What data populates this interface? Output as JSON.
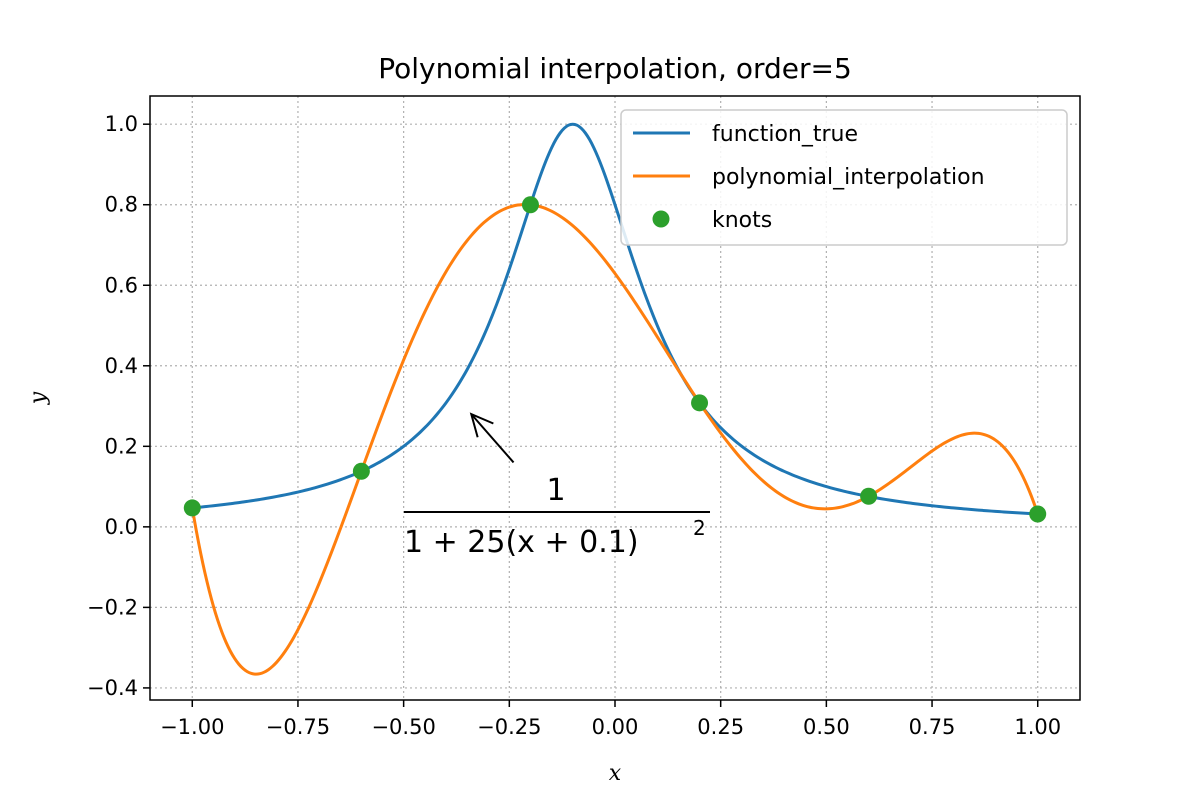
{
  "chart_data": {
    "type": "line",
    "title": "Polynomial interpolation, order=5",
    "xlabel": "x",
    "ylabel": "y",
    "xlim": [
      -1.1,
      1.1
    ],
    "ylim": [
      -0.43,
      1.07
    ],
    "xticks": [
      -1.0,
      -0.75,
      -0.5,
      -0.25,
      0.0,
      0.25,
      0.5,
      0.75,
      1.0
    ],
    "xtick_labels": [
      "−1.00",
      "−0.75",
      "−0.50",
      "−0.25",
      "0.00",
      "0.25",
      "0.50",
      "0.75",
      "1.00"
    ],
    "yticks": [
      -0.4,
      -0.2,
      0.0,
      0.2,
      0.4,
      0.6,
      0.8,
      1.0
    ],
    "ytick_labels": [
      "−0.4",
      "−0.2",
      "0.0",
      "0.2",
      "0.4",
      "0.6",
      "0.8",
      "1.0"
    ],
    "grid": true,
    "legend_position": "top-right",
    "series": [
      {
        "name": "function_true",
        "color": "#1f77b4",
        "style": "line",
        "x": [
          -1.0,
          -0.9,
          -0.8,
          -0.7,
          -0.6,
          -0.5,
          -0.45,
          -0.4,
          -0.35,
          -0.3,
          -0.25,
          -0.2,
          -0.15,
          -0.1,
          -0.05,
          0.0,
          0.05,
          0.1,
          0.15,
          0.2,
          0.3,
          0.4,
          0.5,
          0.6,
          0.7,
          0.8,
          0.9,
          1.0
        ],
        "values": [
          0.047,
          0.059,
          0.076,
          0.1,
          0.138,
          0.2,
          0.246,
          0.308,
          0.39,
          0.5,
          0.64,
          0.8,
          0.941,
          1.0,
          0.941,
          0.8,
          0.64,
          0.5,
          0.39,
          0.308,
          0.2,
          0.138,
          0.1,
          0.076,
          0.059,
          0.047,
          0.038,
          0.032
        ]
      },
      {
        "name": "polynomial_interpolation",
        "color": "#ff7f0e",
        "style": "line",
        "x": [
          -1.0,
          -0.95,
          -0.9,
          -0.85,
          -0.8,
          -0.75,
          -0.7,
          -0.65,
          -0.6,
          -0.55,
          -0.5,
          -0.45,
          -0.4,
          -0.35,
          -0.3,
          -0.25,
          -0.2,
          -0.15,
          -0.1,
          -0.05,
          0.0,
          0.05,
          0.1,
          0.15,
          0.2,
          0.25,
          0.3,
          0.35,
          0.4,
          0.45,
          0.5,
          0.55,
          0.6,
          0.65,
          0.7,
          0.75,
          0.8,
          0.85,
          0.9,
          0.95,
          1.0
        ],
        "values": [
          0.047,
          -0.194,
          -0.323,
          -0.365,
          -0.341,
          -0.268,
          -0.161,
          -0.033,
          0.138,
          0.245,
          0.382,
          0.508,
          0.619,
          0.706,
          0.767,
          0.798,
          0.8,
          0.773,
          0.72,
          0.647,
          0.559,
          0.463,
          0.365,
          0.271,
          0.308,
          0.265,
          0.21,
          0.154,
          0.101,
          0.062,
          0.044,
          0.051,
          0.076,
          0.128,
          0.181,
          0.218,
          0.232,
          0.229,
          0.2,
          0.14,
          0.032
        ]
      },
      {
        "name": "knots",
        "color": "#2ca02c",
        "style": "markers",
        "x": [
          -1.0,
          -0.6,
          -0.2,
          0.2,
          0.6,
          1.0
        ],
        "values": [
          0.047,
          0.138,
          0.8,
          0.308,
          0.076,
          0.032
        ]
      }
    ],
    "annotation": {
      "numerator": "1",
      "denominator": "1 + 25(x + 0.1)",
      "exponent": "2",
      "arrow_from": [
        -0.24,
        0.16
      ],
      "arrow_to": [
        -0.34,
        0.28
      ]
    }
  }
}
